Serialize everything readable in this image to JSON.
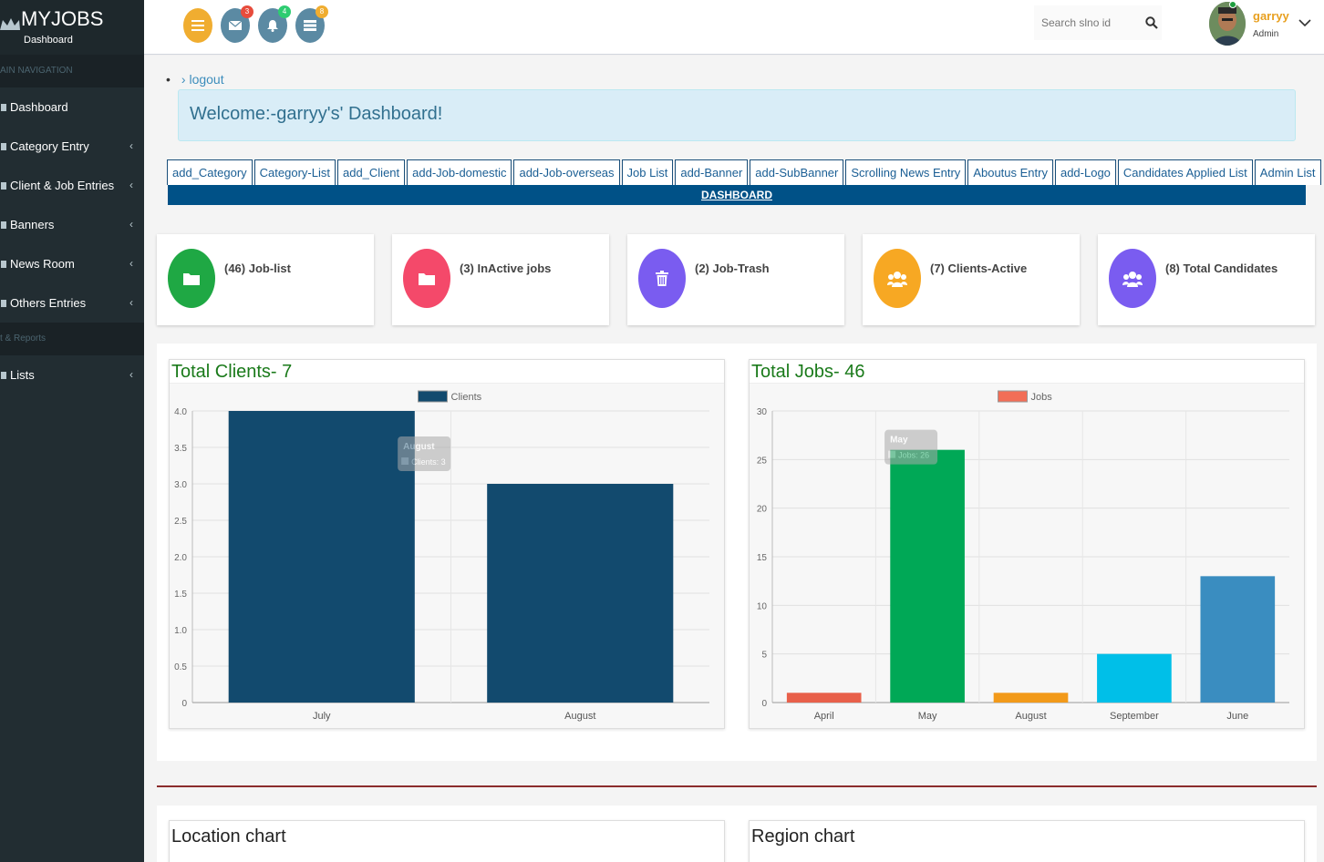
{
  "brand": {
    "logo": "MYJOBS",
    "subtitle": "Dashboard"
  },
  "sidebar": {
    "header_main": "AIN NAVIGATION",
    "header_reports": "t & Reports",
    "items": [
      {
        "label": "Dashboard",
        "icon": "dashboard-icon",
        "chevron": ""
      },
      {
        "label": "Category Entry",
        "icon": "category-icon",
        "chevron": "‹"
      },
      {
        "label": "Client & Job Entries",
        "icon": "client-icon",
        "chevron": "‹"
      },
      {
        "label": "Banners",
        "icon": "banner-icon",
        "chevron": "‹"
      },
      {
        "label": "News Room",
        "icon": "news-icon",
        "chevron": "‹"
      },
      {
        "label": "Others Entries",
        "icon": "others-icon",
        "chevron": "‹"
      }
    ],
    "report_items": [
      {
        "label": "Lists",
        "icon": "lists-icon",
        "chevron": "‹"
      }
    ]
  },
  "topbar": {
    "menu_icon": "menu-icon",
    "mail_badge": "3",
    "bell_badge": "4",
    "tasks_badge": "8",
    "search_placeholder": "Search slno id",
    "user_name": "garryy",
    "user_role": "Admin"
  },
  "colors": {
    "menu": "#f0ad30",
    "mail": "#5b8aa3",
    "bell": "#5b8aa3",
    "tasks": "#5b8aa3",
    "badge_mail": "#e74c3c",
    "badge_bell": "#2ecc71",
    "badge_tasks": "#f0ad30",
    "card1": "#1fa844",
    "card2": "#f4496a",
    "card3": "#7a5cf0",
    "card4": "#f7a823",
    "card5": "#7a5cf0"
  },
  "content": {
    "logout_text": "› logout",
    "welcome": "Welcome:-garryy's' Dashboard!",
    "tabs": [
      "add_Category",
      "Category-List",
      "add_Client",
      "add-Job-domestic",
      "add-Job-overseas",
      "Job List",
      "add-Banner",
      "add-SubBanner",
      "Scrolling News Entry",
      "Aboutus Entry",
      "add-Logo",
      "Candidates Applied List",
      "Admin List"
    ],
    "dashboard_bar": "DASHBOARD",
    "cards": [
      {
        "text": "(46) Job-list",
        "icon": "folder-icon"
      },
      {
        "text": "(3) InActive jobs",
        "icon": "folder-icon"
      },
      {
        "text": "(2) Job-Trash",
        "icon": "trash-icon"
      },
      {
        "text": "(7) Clients-Active",
        "icon": "users-icon"
      },
      {
        "text": "(8) Total Candidates",
        "icon": "users-icon"
      }
    ],
    "location_chart_title": "Location chart",
    "region_chart_title": "Region chart"
  },
  "chart_data": [
    {
      "type": "bar",
      "title": "Total Clients- 7",
      "categories": [
        "July",
        "August"
      ],
      "series": [
        {
          "name": "Clients",
          "values": [
            4,
            3
          ],
          "color": "#124a6e"
        }
      ],
      "ylim": [
        0,
        4
      ],
      "yticks": [
        "0",
        "0.5",
        "1.0",
        "1.5",
        "2.0",
        "2.5",
        "3.0",
        "3.5",
        "4.0"
      ],
      "legend": "top-center",
      "grid": true,
      "tooltip": {
        "title": "August",
        "label": "Clients: 3"
      }
    },
    {
      "type": "bar",
      "title": "Total Jobs- 46",
      "categories": [
        "April",
        "May",
        "August",
        "September",
        "June"
      ],
      "series": [
        {
          "name": "Jobs",
          "values": [
            1,
            26,
            1,
            5,
            13
          ],
          "colors": [
            "#e8604a",
            "#00a856",
            "#f29a1a",
            "#00bfe8",
            "#3a8dc0"
          ],
          "legend_color": "#f26e57"
        }
      ],
      "ylim": [
        0,
        30
      ],
      "yticks": [
        "0",
        "5",
        "10",
        "15",
        "20",
        "25",
        "30"
      ],
      "legend": "top-center",
      "grid": true,
      "tooltip": {
        "title": "May",
        "label": "Jobs: 26"
      }
    }
  ]
}
